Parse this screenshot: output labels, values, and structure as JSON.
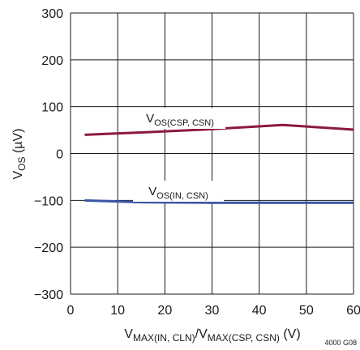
{
  "chart_data": {
    "type": "line",
    "xlim": [
      0,
      60
    ],
    "ylim": [
      -300,
      300
    ],
    "xticks": [
      0,
      10,
      20,
      30,
      40,
      50,
      60
    ],
    "yticks": [
      300,
      200,
      100,
      0,
      -100,
      -200,
      -300
    ],
    "xtick_labels": [
      "0",
      "10",
      "20",
      "30",
      "40",
      "50",
      "60"
    ],
    "ytick_labels": [
      "300",
      "200",
      "100",
      "0",
      "−100",
      "−200",
      "−300"
    ],
    "grid": true,
    "xlabel": {
      "p1": "V",
      "s1": "MAX(IN, CLN)",
      "p2": "/V",
      "s2": "MAX(CSP, CSN)",
      "p3": " (V)"
    },
    "ylabel": {
      "main": "V",
      "sub": "OS",
      "unit": " (µV)"
    },
    "series": [
      {
        "label_main": "V",
        "label_sub": "OS(CSP, CSN)",
        "color": "#8c1a3a",
        "x": [
          3,
          15,
          30,
          45,
          60
        ],
        "y": [
          40,
          45,
          52,
          61,
          51
        ]
      },
      {
        "label_main": "V",
        "label_sub": "OS(IN, CSN)",
        "color": "#3a56a5",
        "x": [
          3,
          15,
          30,
          45,
          60
        ],
        "y": [
          -100,
          -104,
          -105,
          -105,
          -105
        ]
      }
    ],
    "figure_code": "4000 G08"
  }
}
